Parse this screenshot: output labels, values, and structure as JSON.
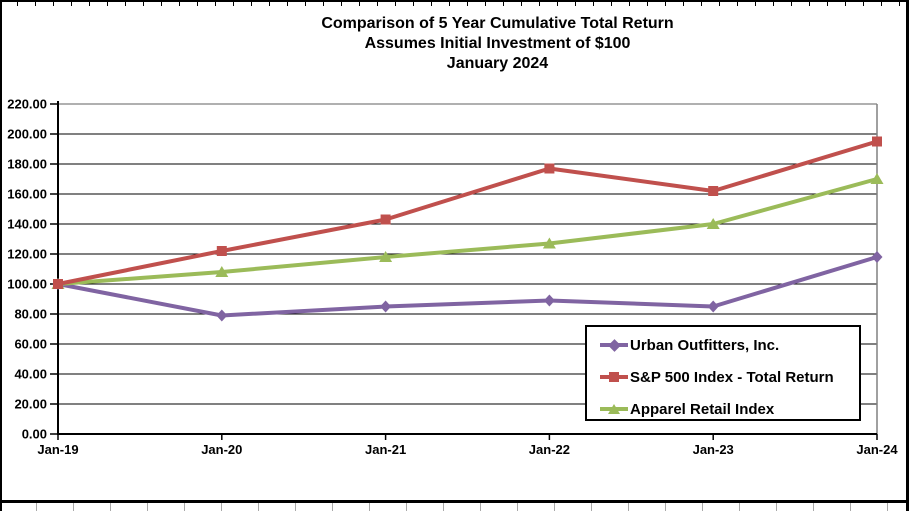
{
  "title": {
    "line1": "Comparison of 5 Year Cumulative Total Return",
    "line2": "Assumes Initial Investment of $100",
    "line3": "January 2024"
  },
  "chart_data": {
    "type": "line",
    "categories": [
      "Jan-19",
      "Jan-20",
      "Jan-21",
      "Jan-22",
      "Jan-23",
      "Jan-24"
    ],
    "series": [
      {
        "name": "Urban Outfitters, Inc.",
        "color": "#8064A2",
        "marker": "diamond",
        "values": [
          100,
          79,
          85,
          89,
          85,
          118
        ]
      },
      {
        "name": "S&P 500 Index - Total Return",
        "color": "#C0504D",
        "marker": "square",
        "values": [
          100,
          122,
          143,
          177,
          162,
          195
        ]
      },
      {
        "name": "Apparel Retail Index",
        "color": "#9BBB59",
        "marker": "triangle",
        "values": [
          100,
          108,
          118,
          127,
          140,
          170
        ]
      }
    ],
    "y_ticks": [
      "220.00",
      "200.00",
      "180.00",
      "160.00",
      "140.00",
      "120.00",
      "100.00",
      "80.00",
      "60.00",
      "40.00",
      "20.00",
      "0.00"
    ],
    "ylim": [
      0,
      220
    ],
    "y_step": 20,
    "grid": true,
    "legend_position": "inside-bottom-right",
    "axis_color": "#000000",
    "plot_border_color": "#808080",
    "xlabel": "",
    "ylabel": ""
  }
}
